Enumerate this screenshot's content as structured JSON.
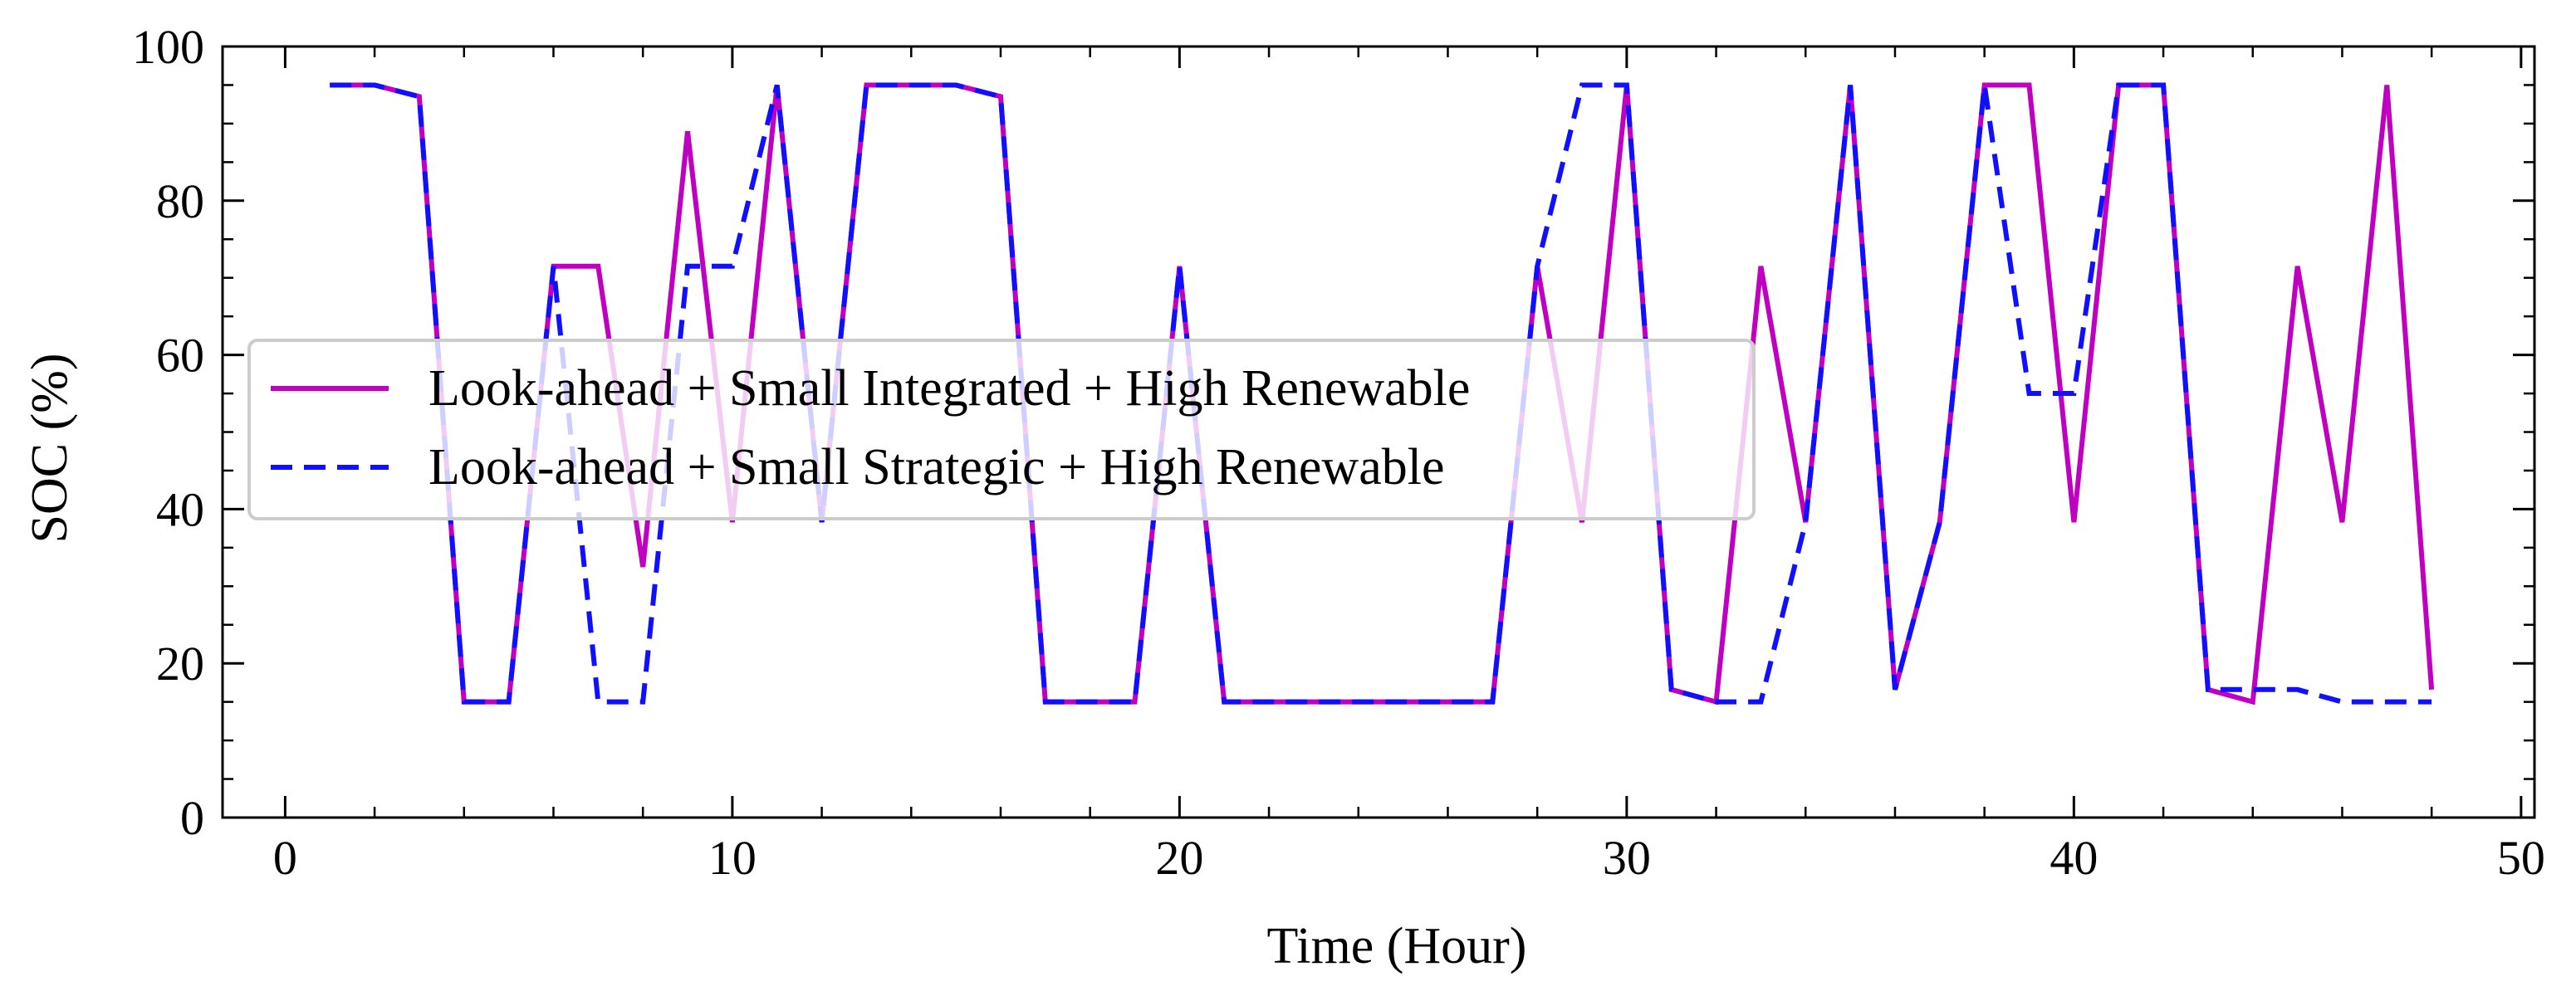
{
  "chart_data": {
    "type": "line",
    "title": "",
    "xlabel": "Time (Hour)",
    "ylabel": "SOC (%)",
    "xlim": [
      -1.4,
      50.3
    ],
    "ylim": [
      0,
      100
    ],
    "xticks": [
      0,
      10,
      20,
      30,
      40,
      50
    ],
    "yticks": [
      0,
      20,
      40,
      60,
      80,
      100
    ],
    "grid": false,
    "legend_position": "center-left",
    "series": [
      {
        "name": "Look-ahead + Small Integrated + High Renewable",
        "color": "#c000c0",
        "style": "solid",
        "x": [
          1,
          2,
          3,
          4,
          5,
          6,
          7,
          8,
          9,
          10,
          11,
          12,
          13,
          14,
          15,
          16,
          17,
          18,
          19,
          20,
          21,
          22,
          23,
          24,
          25,
          26,
          27,
          28,
          29,
          30,
          31,
          32,
          33,
          34,
          35,
          36,
          37,
          38,
          39,
          40,
          41,
          42,
          43,
          44,
          45,
          46,
          47,
          48
        ],
        "y": [
          95,
          95,
          93.5,
          15,
          15,
          71.5,
          71.5,
          32.5,
          89,
          38.3,
          95,
          38.3,
          95,
          95,
          95,
          93.5,
          15,
          15,
          15,
          71.5,
          15,
          15,
          15,
          15,
          15,
          15,
          15,
          71.5,
          38.3,
          95,
          16.6,
          15,
          71.5,
          38.3,
          95,
          16.6,
          38.3,
          95,
          95,
          38.3,
          95,
          95,
          16.6,
          15,
          71.5,
          38.3,
          95,
          16.6
        ]
      },
      {
        "name": "Look-ahead + Small Strategic + High Renewable",
        "color": "#1010ff",
        "style": "dashed",
        "x": [
          1,
          2,
          3,
          4,
          5,
          6,
          7,
          8,
          9,
          10,
          11,
          12,
          13,
          14,
          15,
          16,
          17,
          18,
          19,
          20,
          21,
          22,
          23,
          24,
          25,
          26,
          27,
          28,
          29,
          30,
          31,
          32,
          33,
          34,
          35,
          36,
          37,
          38,
          39,
          40,
          41,
          42,
          43,
          44,
          45,
          46,
          47,
          48
        ],
        "y": [
          95,
          95,
          93.5,
          15,
          15,
          71.5,
          15,
          15,
          71.5,
          71.5,
          95,
          38.3,
          95,
          95,
          95,
          93.5,
          15,
          15,
          15,
          71.5,
          15,
          15,
          15,
          15,
          15,
          15,
          15,
          71.5,
          95,
          95,
          16.6,
          15,
          15,
          38.3,
          95,
          16.6,
          38.3,
          95,
          55,
          55,
          95,
          95,
          16.6,
          16.6,
          16.6,
          15,
          15,
          15
        ]
      }
    ]
  }
}
